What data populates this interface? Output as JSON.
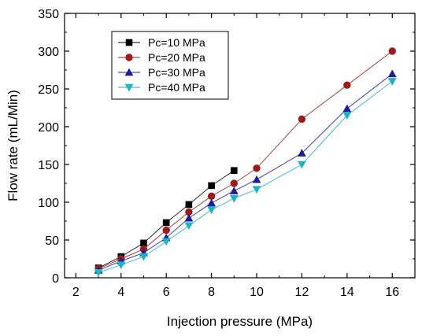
{
  "chart_data": {
    "type": "line",
    "title": "",
    "xlabel": "Injection pressure (MPa)",
    "ylabel": "Flow rate (mL/Min)",
    "xlim": [
      1.5,
      17
    ],
    "ylim": [
      0,
      350
    ],
    "xticks": [
      2,
      4,
      6,
      8,
      10,
      12,
      14,
      16
    ],
    "yticks": [
      0,
      50,
      100,
      150,
      200,
      250,
      300,
      350
    ],
    "grid": false,
    "legend_position": "top-left",
    "series": [
      {
        "name": "Pc=10 MPa",
        "color": "#000000",
        "marker": "square",
        "x": [
          3,
          4,
          5,
          6,
          7,
          8,
          9
        ],
        "y": [
          13,
          28,
          46,
          73,
          97,
          122,
          142
        ]
      },
      {
        "name": "Pc=20 MPa",
        "color": "#9b1c1c",
        "marker": "circle",
        "x": [
          3,
          4,
          5,
          6,
          7,
          8,
          9,
          10,
          12,
          14,
          16
        ],
        "y": [
          12,
          25,
          38,
          63,
          87,
          108,
          125,
          145,
          210,
          255,
          300
        ]
      },
      {
        "name": "Pc=30 MPa",
        "color": "#1c1c99",
        "marker": "triangle-up",
        "x": [
          3,
          4,
          5,
          6,
          7,
          8,
          9,
          10,
          12,
          14,
          16
        ],
        "y": [
          10,
          22,
          33,
          53,
          79,
          99,
          115,
          130,
          165,
          224,
          270
        ]
      },
      {
        "name": "Pc=40 MPa",
        "color": "#1fb2c2",
        "marker": "triangle-down",
        "x": [
          3,
          4,
          5,
          6,
          7,
          8,
          9,
          10,
          12,
          14,
          16
        ],
        "y": [
          7,
          17,
          28,
          48,
          69,
          90,
          105,
          117,
          150,
          215,
          260
        ]
      }
    ]
  }
}
